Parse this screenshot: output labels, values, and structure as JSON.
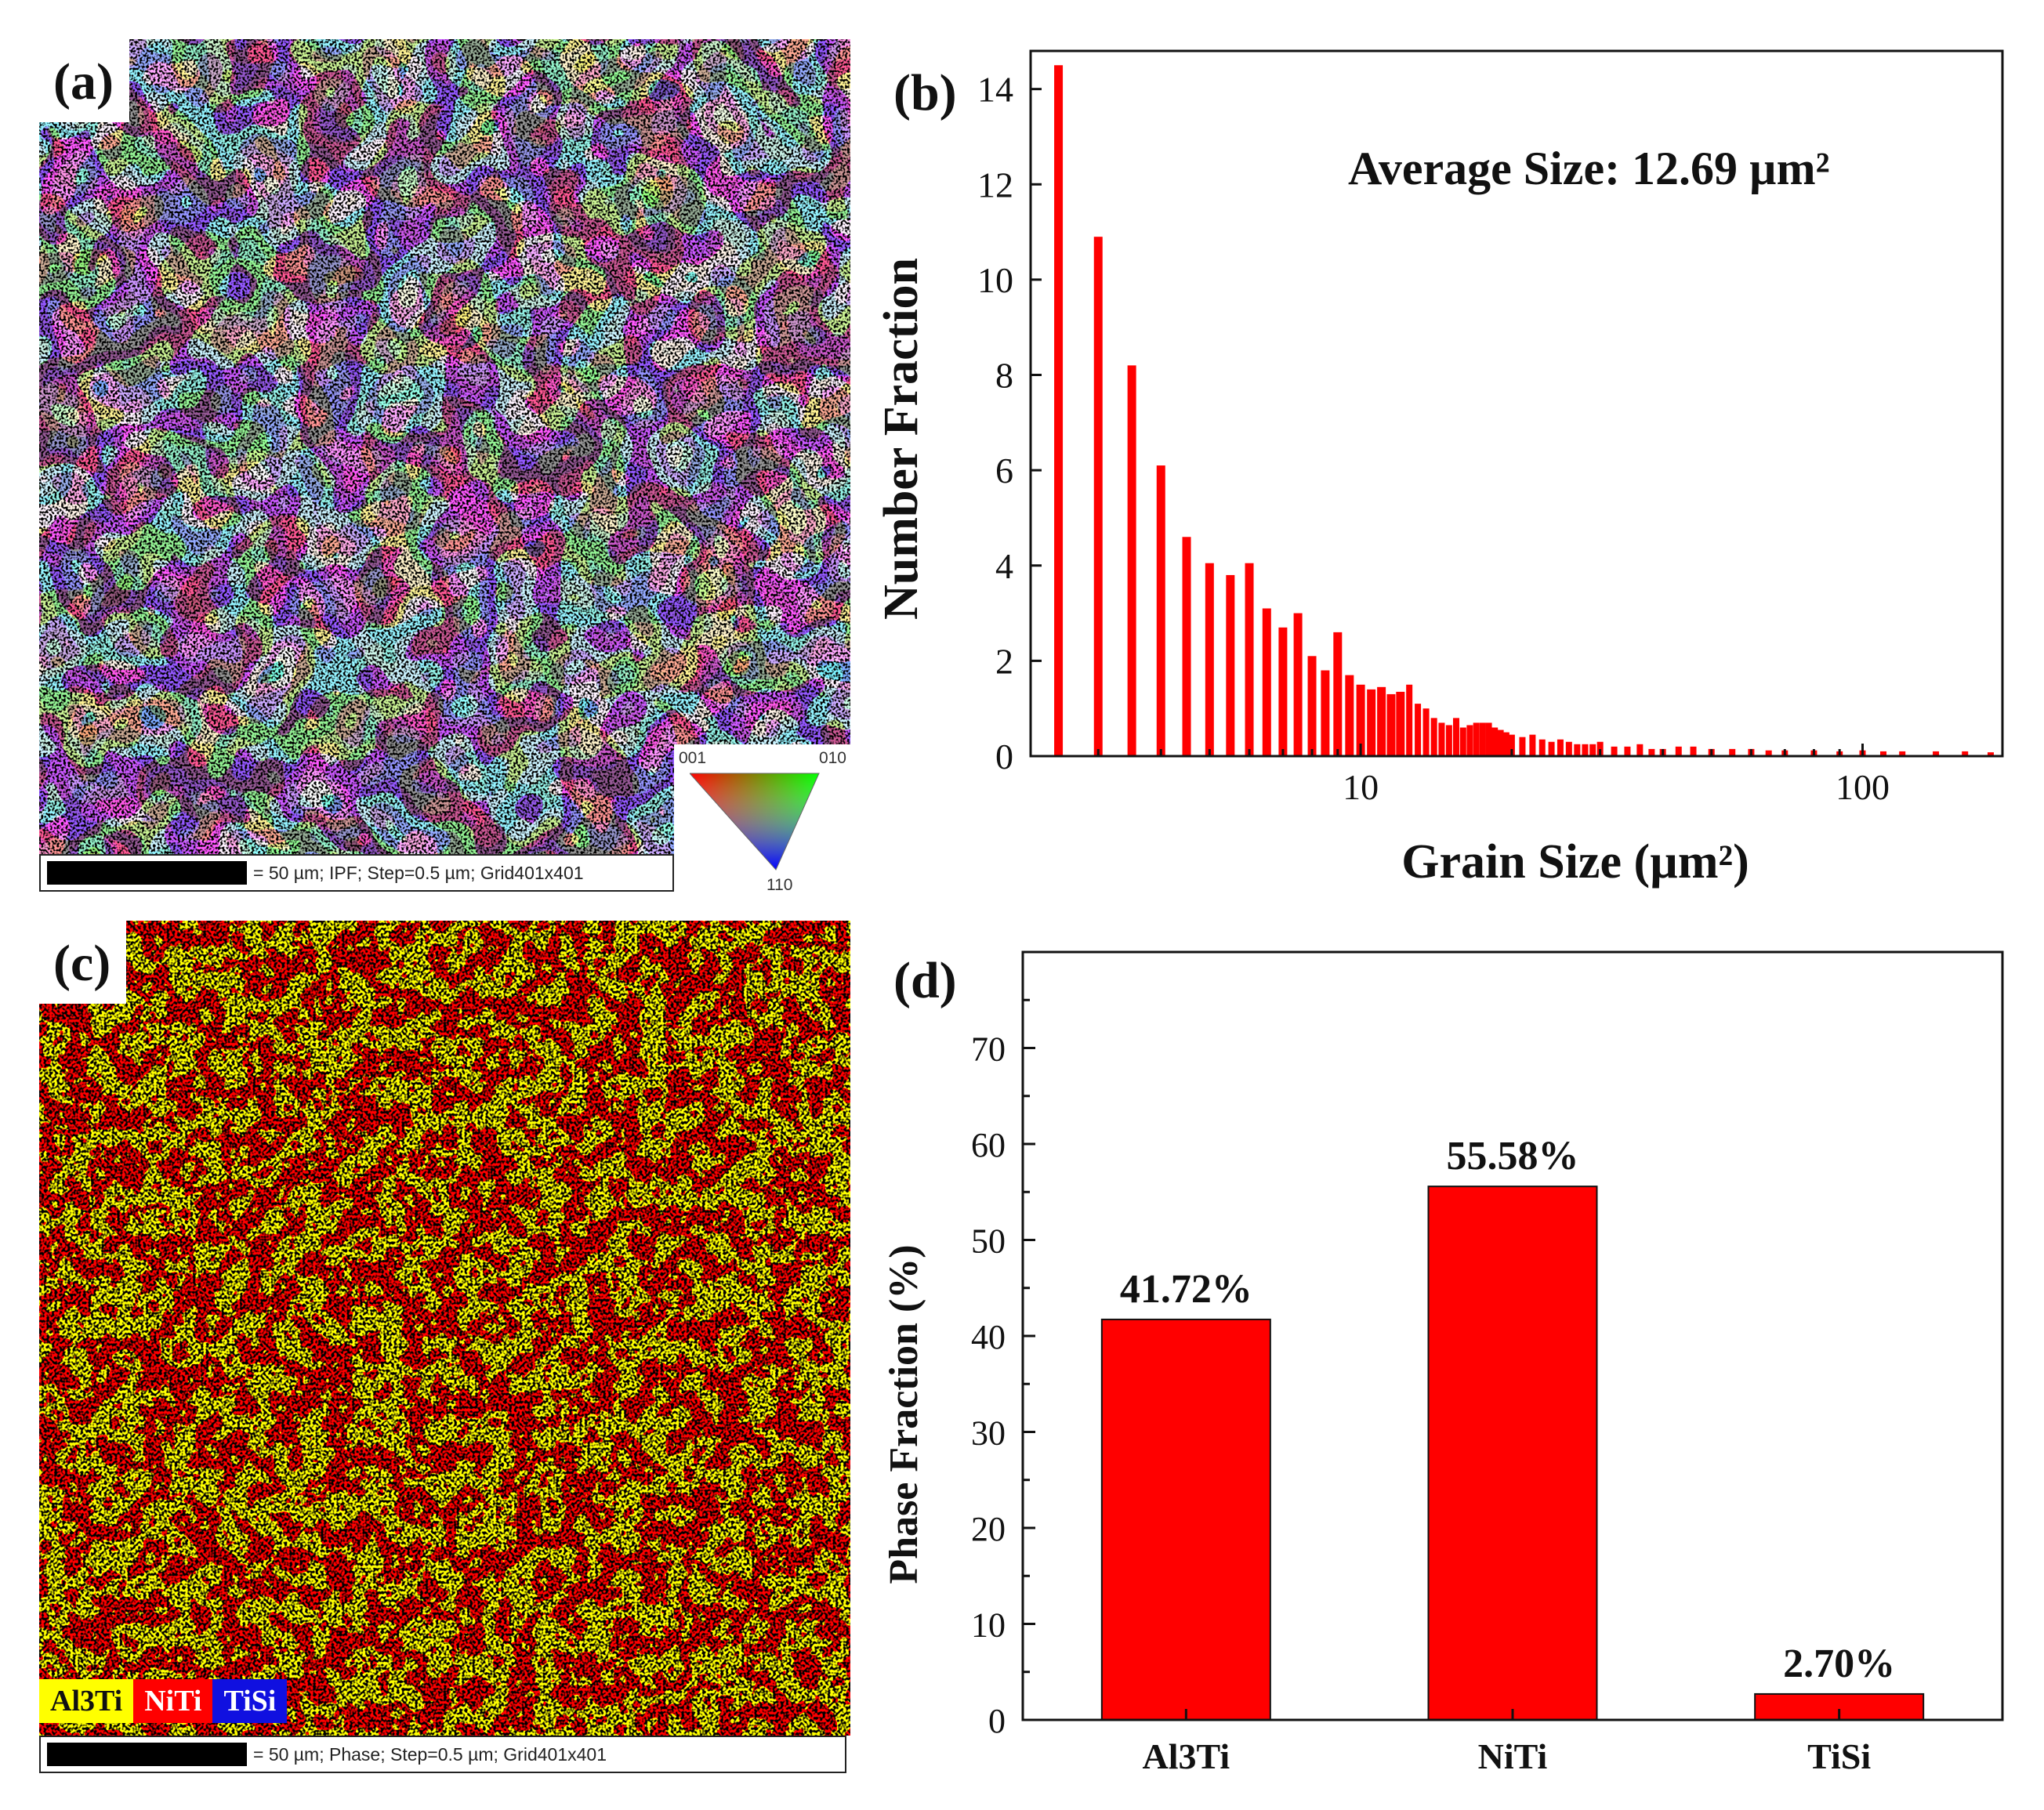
{
  "panels": {
    "a": {
      "label": "(a)",
      "scalebar_text": "= 50 µm; IPF; Step=0.5 µm; Grid401x401",
      "ipf_key": {
        "top_left": "001",
        "top_right": "010",
        "bottom": "110"
      }
    },
    "c": {
      "label": "(c)",
      "scalebar_text": "= 50 µm; Phase; Step=0.5 µm; Grid401x401",
      "legend": [
        {
          "name": "Al3Ti",
          "color": "#ffff00",
          "text_color": "#111111"
        },
        {
          "name": "NiTi",
          "color": "#ff0000",
          "text_color": "#ffffff"
        },
        {
          "name": "TiSi",
          "color": "#1010e0",
          "text_color": "#ffffff"
        }
      ]
    }
  },
  "colors": {
    "bar": "#ff0000",
    "axis": "#111111"
  },
  "chart_data": [
    {
      "id": "b",
      "panel_label": "(b)",
      "type": "bar",
      "xscale": "log",
      "title": "",
      "annotation": "Average Size: 12.69 µm²",
      "xlabel": "Grain Size (µm²)",
      "ylabel": "Number Fraction",
      "xlim": [
        2.2,
        190
      ],
      "ylim": [
        0,
        14.8
      ],
      "yticks": [
        0,
        2,
        4,
        6,
        8,
        10,
        12,
        14
      ],
      "ytick_labels": [
        "0",
        "2",
        "4",
        "6",
        "8",
        "10",
        "12",
        "14"
      ],
      "xticks": [
        10,
        100
      ],
      "xtick_labels": [
        "10",
        "100"
      ],
      "x": [
        2.5,
        3.0,
        3.5,
        4.0,
        4.5,
        5.0,
        5.5,
        6.0,
        6.5,
        7.0,
        7.5,
        8.0,
        8.5,
        9.0,
        9.5,
        10.0,
        10.5,
        11.0,
        11.5,
        12.0,
        12.5,
        13.0,
        13.5,
        14.0,
        14.5,
        15.0,
        15.5,
        16.0,
        16.5,
        17.0,
        17.5,
        18.0,
        18.5,
        19.0,
        19.5,
        20.0,
        21.0,
        22.0,
        23.0,
        24.0,
        25.0,
        26.0,
        27.0,
        28.0,
        29.0,
        30.0,
        32.0,
        34.0,
        36.0,
        38.0,
        40.0,
        43.0,
        46.0,
        50.0,
        55.0,
        60.0,
        65.0,
        70.0,
        80.0,
        90.0,
        100.0,
        110.0,
        120.0,
        140.0,
        160.0,
        180.0
      ],
      "values": [
        14.5,
        10.9,
        8.2,
        6.1,
        4.6,
        4.05,
        3.8,
        4.05,
        3.1,
        2.7,
        3.0,
        2.1,
        1.8,
        2.6,
        1.7,
        1.5,
        1.4,
        1.45,
        1.3,
        1.35,
        1.5,
        1.1,
        1.0,
        0.8,
        0.7,
        0.65,
        0.8,
        0.6,
        0.65,
        0.7,
        0.7,
        0.7,
        0.6,
        0.55,
        0.5,
        0.45,
        0.4,
        0.45,
        0.35,
        0.3,
        0.35,
        0.3,
        0.25,
        0.25,
        0.25,
        0.3,
        0.2,
        0.2,
        0.25,
        0.15,
        0.15,
        0.2,
        0.2,
        0.15,
        0.15,
        0.15,
        0.12,
        0.12,
        0.12,
        0.1,
        0.12,
        0.1,
        0.1,
        0.1,
        0.1,
        0.08
      ]
    },
    {
      "id": "d",
      "panel_label": "(d)",
      "type": "bar",
      "title": "",
      "xlabel": "",
      "ylabel": "Phase Fraction (%)",
      "ylim": [
        0,
        80
      ],
      "yticks": [
        0,
        10,
        20,
        30,
        40,
        50,
        60,
        70
      ],
      "ytick_labels": [
        "0",
        "10",
        "20",
        "30",
        "40",
        "50",
        "60",
        "70"
      ],
      "categories": [
        "Al3Ti",
        "NiTi",
        "TiSi"
      ],
      "values": [
        41.72,
        55.58,
        2.7
      ],
      "data_labels": [
        "41.72%",
        "55.58%",
        "2.70%"
      ]
    }
  ]
}
